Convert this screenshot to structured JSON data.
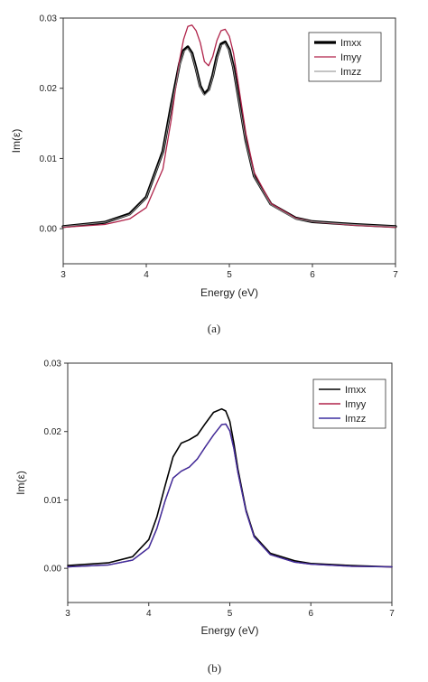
{
  "chart_data": [
    {
      "type": "line",
      "panel_label": "(a)",
      "xlabel": "Energy (eV)",
      "ylabel": "Im(ε)",
      "xlim": [
        3,
        7
      ],
      "ylim": [
        -0.005,
        0.03
      ],
      "xticks": [
        "3",
        "4",
        "5",
        "6",
        "7"
      ],
      "yticks": [
        "0.00",
        "0.01",
        "0.02",
        "0.03"
      ],
      "legend_position": "top-right",
      "grid": false,
      "x": [
        3.0,
        3.5,
        3.8,
        4.0,
        4.2,
        4.3,
        4.4,
        4.45,
        4.5,
        4.55,
        4.6,
        4.65,
        4.7,
        4.75,
        4.8,
        4.85,
        4.9,
        4.95,
        5.0,
        5.05,
        5.1,
        5.2,
        5.3,
        5.5,
        5.8,
        6.0,
        6.5,
        7.0
      ],
      "series": [
        {
          "name": "Imxx",
          "color": "#000000",
          "width": 3.2,
          "values": [
            0.0003,
            0.0009,
            0.0021,
            0.0045,
            0.011,
            0.0175,
            0.0235,
            0.0254,
            0.0259,
            0.025,
            0.0228,
            0.0203,
            0.0192,
            0.0198,
            0.0218,
            0.0245,
            0.0263,
            0.0266,
            0.0255,
            0.023,
            0.0195,
            0.0125,
            0.0075,
            0.0035,
            0.0015,
            0.001,
            0.0006,
            0.0003
          ]
        },
        {
          "name": "Imyy",
          "color": "#b0234a",
          "width": 1.3,
          "values": [
            0.0002,
            0.0006,
            0.0014,
            0.003,
            0.0085,
            0.0155,
            0.024,
            0.027,
            0.0288,
            0.029,
            0.0282,
            0.0265,
            0.0238,
            0.0232,
            0.0245,
            0.0268,
            0.0282,
            0.0284,
            0.0274,
            0.025,
            0.0212,
            0.0135,
            0.008,
            0.0036,
            0.0015,
            0.001,
            0.0005,
            0.0002
          ]
        },
        {
          "name": "Imzz",
          "color": "#8a8a8a",
          "width": 1.0,
          "values": [
            0.0003,
            0.0009,
            0.002,
            0.0044,
            0.0108,
            0.0172,
            0.0232,
            0.0252,
            0.0257,
            0.0248,
            0.0226,
            0.0201,
            0.019,
            0.0196,
            0.0216,
            0.0243,
            0.0261,
            0.0264,
            0.0253,
            0.0228,
            0.0193,
            0.0123,
            0.0074,
            0.0034,
            0.0014,
            0.001,
            0.0006,
            0.0003
          ]
        }
      ]
    },
    {
      "type": "line",
      "panel_label": "(b)",
      "xlabel": "Energy (eV)",
      "ylabel": "Im(ε)",
      "xlim": [
        3,
        7
      ],
      "ylim": [
        -0.005,
        0.03
      ],
      "xticks": [
        "3",
        "4",
        "5",
        "6",
        "7"
      ],
      "yticks": [
        "0.00",
        "0.01",
        "0.02",
        "0.03"
      ],
      "legend_position": "top-right",
      "grid": false,
      "x": [
        3.0,
        3.5,
        3.8,
        4.0,
        4.1,
        4.2,
        4.3,
        4.4,
        4.5,
        4.6,
        4.7,
        4.8,
        4.9,
        4.95,
        5.0,
        5.05,
        5.1,
        5.2,
        5.3,
        5.5,
        5.8,
        6.0,
        6.5,
        7.0
      ],
      "series": [
        {
          "name": "Imxx",
          "color": "#000000",
          "width": 1.6,
          "values": [
            0.0004,
            0.0008,
            0.0017,
            0.0042,
            0.0075,
            0.012,
            0.0163,
            0.0183,
            0.0188,
            0.0195,
            0.0212,
            0.0228,
            0.0233,
            0.023,
            0.0215,
            0.0183,
            0.0145,
            0.0085,
            0.0048,
            0.0022,
            0.0011,
            0.0007,
            0.0004,
            0.0002
          ]
        },
        {
          "name": "Imyy",
          "color": "#b0234a",
          "width": 1.4,
          "values": [
            0.0002,
            0.0005,
            0.0012,
            0.003,
            0.0058,
            0.0098,
            0.0132,
            0.0142,
            0.0148,
            0.016,
            0.0178,
            0.0195,
            0.021,
            0.0211,
            0.0201,
            0.0175,
            0.014,
            0.0083,
            0.0046,
            0.002,
            0.0009,
            0.0006,
            0.0003,
            0.0002
          ]
        },
        {
          "name": "Imzz",
          "color": "#3b2fa0",
          "width": 1.4,
          "values": [
            0.0002,
            0.0005,
            0.0012,
            0.003,
            0.0058,
            0.0098,
            0.0132,
            0.0142,
            0.0148,
            0.016,
            0.0178,
            0.0195,
            0.021,
            0.0211,
            0.0201,
            0.0175,
            0.014,
            0.0083,
            0.0046,
            0.002,
            0.0009,
            0.0006,
            0.0003,
            0.0002
          ]
        }
      ]
    }
  ]
}
